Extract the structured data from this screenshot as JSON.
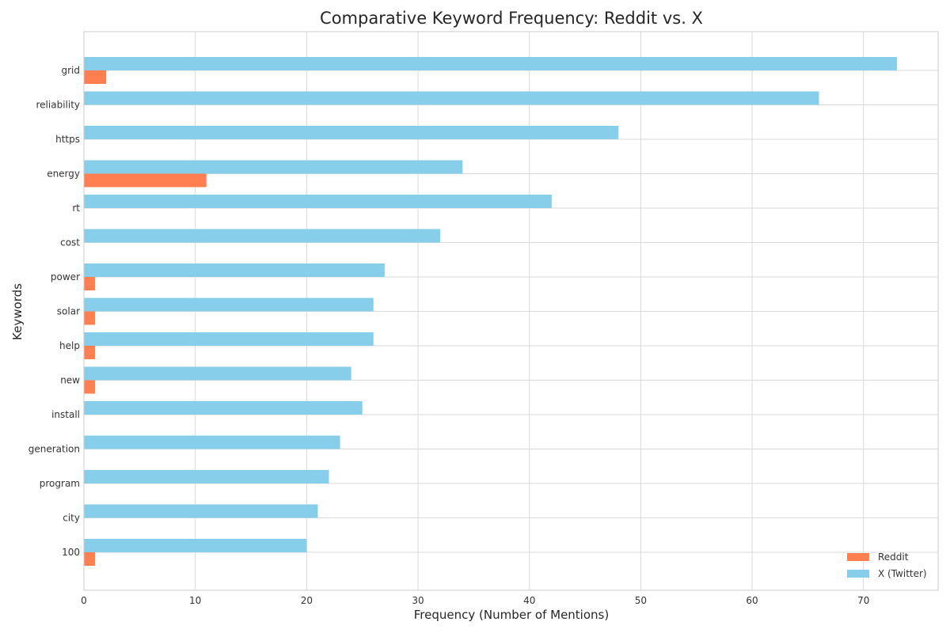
{
  "chart_data": {
    "type": "bar",
    "orientation": "horizontal",
    "title": "Comparative Keyword Frequency: Reddit vs. X",
    "xlabel": "Frequency (Number of Mentions)",
    "ylabel": "Keywords",
    "categories": [
      "grid",
      "reliability",
      "https",
      "energy",
      "rt",
      "cost",
      "power",
      "solar",
      "help",
      "new",
      "install",
      "generation",
      "program",
      "city",
      "100"
    ],
    "series": [
      {
        "name": "Reddit",
        "color": "#ff7f50",
        "values": [
          2,
          0,
          0,
          11,
          0,
          0,
          1,
          1,
          1,
          1,
          0,
          0,
          0,
          0,
          1
        ]
      },
      {
        "name": "X (Twitter)",
        "color": "#87ceeb",
        "values": [
          73,
          66,
          48,
          34,
          42,
          32,
          27,
          26,
          26,
          24,
          25,
          23,
          22,
          21,
          20
        ]
      }
    ],
    "xlim": [
      0,
      76.7
    ],
    "xticks": [
      0,
      10,
      20,
      30,
      40,
      50,
      60,
      70
    ],
    "grid": true,
    "legend_position": "bottom-right"
  }
}
